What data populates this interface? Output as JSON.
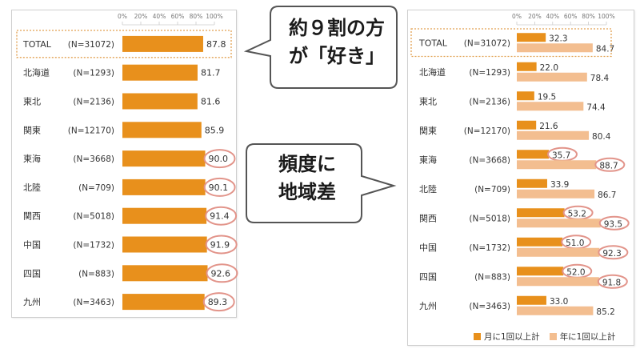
{
  "colors": {
    "monthly": "#e8901c",
    "yearly": "#f3be90",
    "circle": "#e2948a",
    "dotted_border": "#e2a050",
    "callout_stroke": "#555555"
  },
  "callouts": {
    "top": [
      "約９割の方",
      "が「好き」"
    ],
    "middle": [
      "頻度に",
      "地域差"
    ]
  },
  "chart_data": [
    {
      "type": "bar",
      "orientation": "horizontal",
      "tick_labels": [
        "0%",
        "20%",
        "40%",
        "60%",
        "80%",
        "100%"
      ],
      "xlim": [
        0,
        100
      ],
      "categories": [
        "TOTAL",
        "北海道",
        "東北",
        "関東",
        "東海",
        "北陸",
        "関西",
        "中国",
        "四国",
        "九州"
      ],
      "sample_sizes": [
        "(N=31072)",
        "(N=1293)",
        "(N=2136)",
        "(N=12170)",
        "(N=3668)",
        "(N=709)",
        "(N=5018)",
        "(N=1732)",
        "(N=883)",
        "(N=3463)"
      ],
      "values": [
        87.8,
        81.7,
        81.6,
        85.9,
        90.0,
        90.1,
        91.4,
        91.9,
        92.6,
        89.3
      ],
      "value_labels": [
        "87.8",
        "81.7",
        "81.6",
        "85.9",
        "90.0",
        "90.1",
        "91.4",
        "91.9",
        "92.6",
        "89.3"
      ],
      "circled": [
        false,
        false,
        false,
        false,
        true,
        true,
        true,
        true,
        true,
        true
      ]
    },
    {
      "type": "bar",
      "orientation": "horizontal",
      "tick_labels": [
        "0%",
        "20%",
        "40%",
        "60%",
        "80%",
        "100%"
      ],
      "xlim": [
        0,
        100
      ],
      "categories": [
        "TOTAL",
        "北海道",
        "東北",
        "関東",
        "東海",
        "北陸",
        "関西",
        "中国",
        "四国",
        "九州"
      ],
      "sample_sizes": [
        "(N=31072)",
        "(N=1293)",
        "(N=2136)",
        "(N=12170)",
        "(N=3668)",
        "(N=709)",
        "(N=5018)",
        "(N=1732)",
        "(N=883)",
        "(N=3463)"
      ],
      "series": [
        {
          "name": "月に1回以上計",
          "values": [
            32.3,
            22.0,
            19.5,
            21.6,
            35.7,
            33.9,
            53.2,
            51.0,
            52.0,
            33.0
          ],
          "value_labels": [
            "32.3",
            "22.0",
            "19.5",
            "21.6",
            "35.7",
            "33.9",
            "53.2",
            "51.0",
            "52.0",
            "33.0"
          ],
          "circled": [
            false,
            false,
            false,
            false,
            true,
            false,
            true,
            true,
            true,
            false
          ]
        },
        {
          "name": "年に1回以上計",
          "values": [
            84.7,
            78.4,
            74.4,
            80.4,
            88.7,
            86.7,
            93.5,
            92.3,
            91.8,
            85.2
          ],
          "value_labels": [
            "84.7",
            "78.4",
            "74.4",
            "80.4",
            "88.7",
            "86.7",
            "93.5",
            "92.3",
            "91.8",
            "85.2"
          ],
          "circled": [
            false,
            false,
            false,
            false,
            true,
            false,
            true,
            true,
            true,
            false
          ]
        }
      ],
      "legend_position": "bottom-right"
    }
  ]
}
